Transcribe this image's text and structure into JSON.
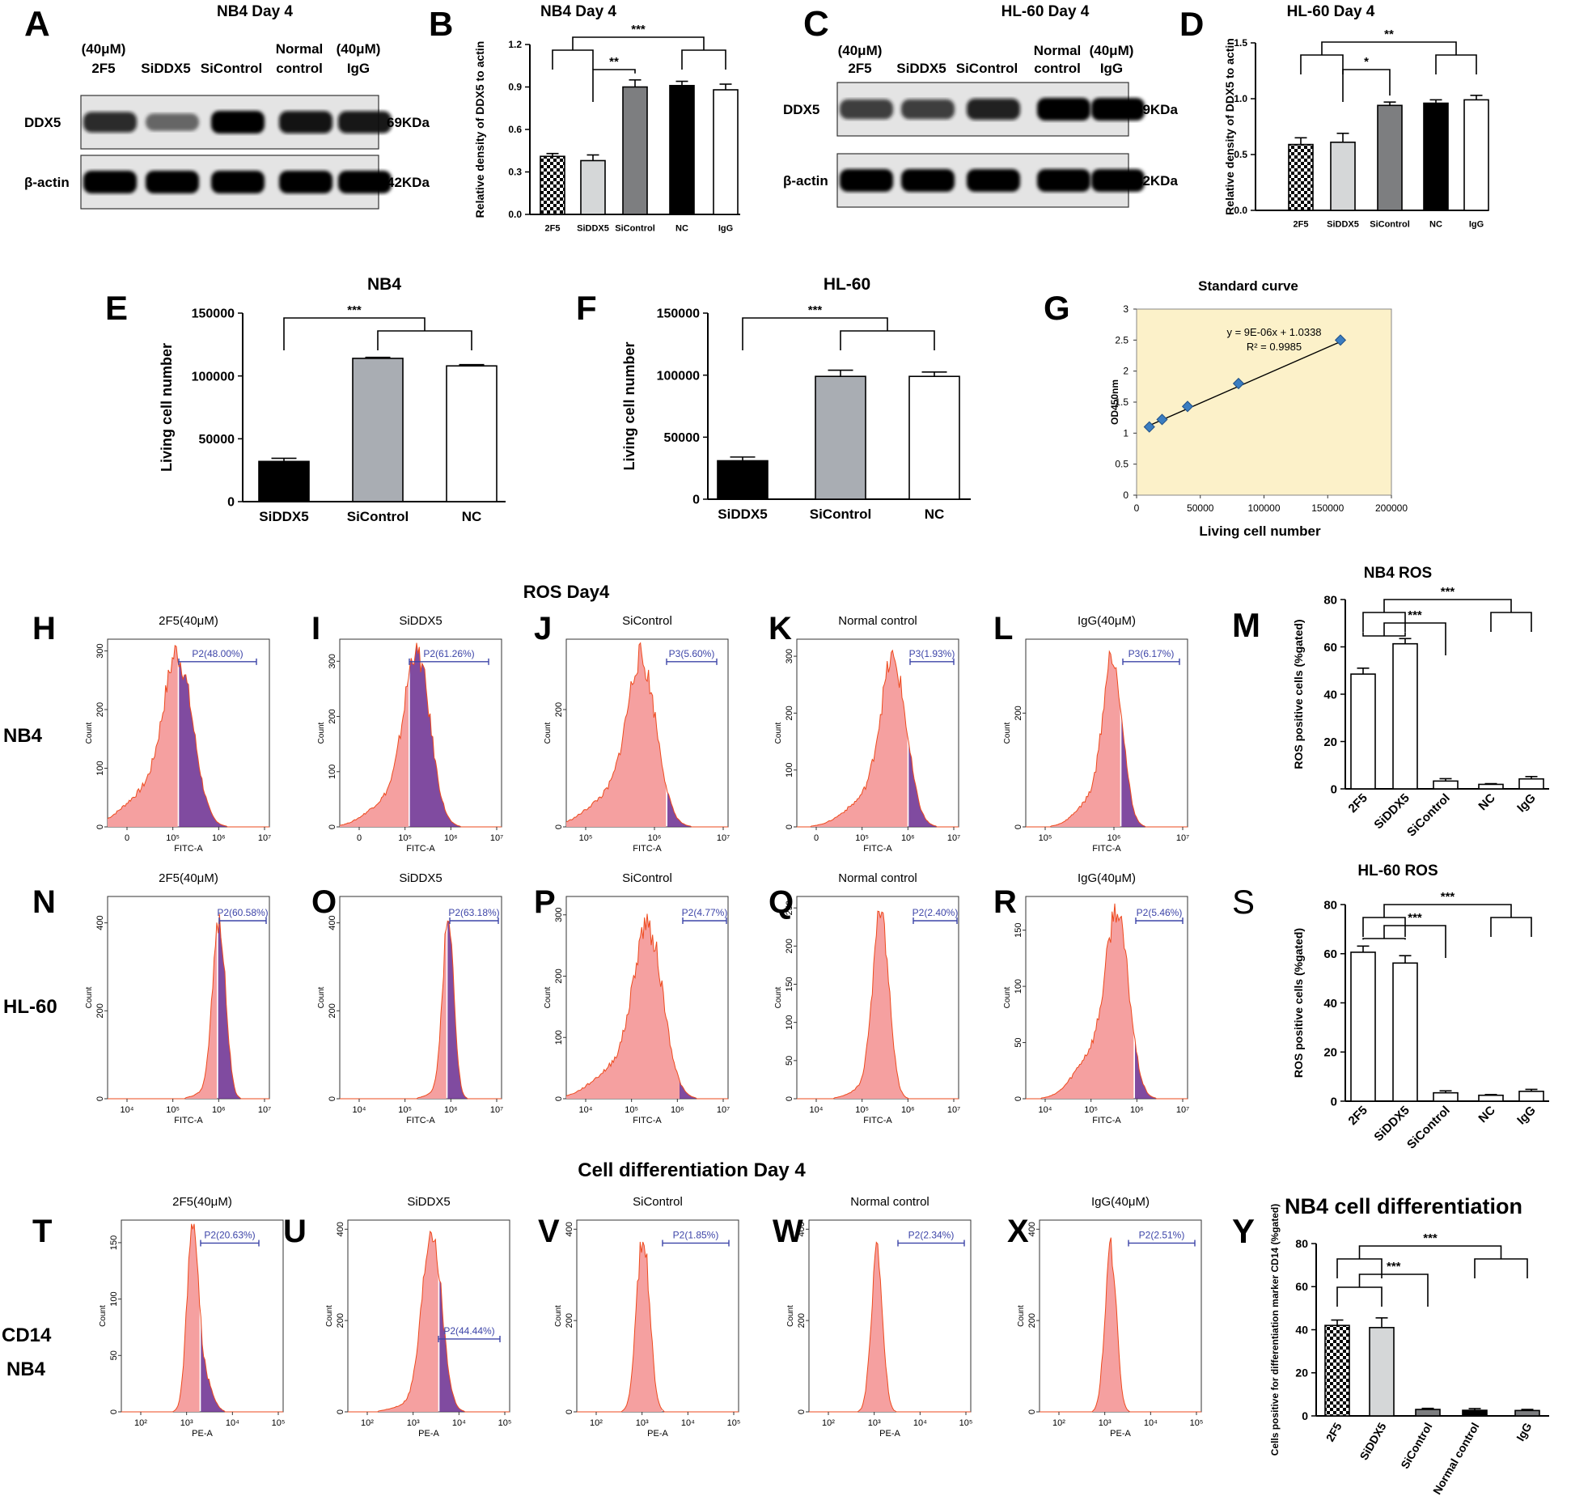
{
  "figure_title_ros": "ROS  Day4",
  "figure_title_diff": "Cell differentiation Day 4",
  "row_label_nb4": "NB4",
  "row_label_hl60": "HL-60",
  "row_label_cd14": "CD14",
  "row_label_cd14_nb4": "NB4",
  "colors": {
    "bar_black": "#000000",
    "bar_light": "#d5d7d8",
    "bar_gray": "#7d7e80",
    "bar_sicontrol_e": "#a9adb3",
    "hist_fill": "#f5a0a0",
    "hist_edge": "#ee4a1e",
    "hist_gated": "#6a2c8f",
    "gate": "#3d45a8",
    "std_bg": "#fcf1c9"
  },
  "blots": {
    "A": {
      "letter": "A",
      "title": "NB4 Day 4",
      "lane_top": [
        "(40μM)",
        "",
        "",
        "Normal",
        "(40μM)"
      ],
      "lanes": [
        "2F5",
        "SiDDX5",
        "SiControl",
        "control",
        "IgG"
      ],
      "rows": [
        {
          "label": "DDX5",
          "size": "69KDa",
          "intensity": [
            0.78,
            0.45,
            1.0,
            0.95,
            0.93
          ]
        },
        {
          "label": "β-actin",
          "size": "42KDa",
          "intensity": [
            1.0,
            1.0,
            1.0,
            1.0,
            1.0
          ]
        }
      ]
    },
    "C": {
      "letter": "C",
      "title": "HL-60 Day 4",
      "lane_top": [
        "(40μM)",
        "",
        "",
        "Normal",
        "(40μM)"
      ],
      "lanes": [
        "2F5",
        "SiDDX5",
        "SiControl",
        "control",
        "IgG"
      ],
      "rows": [
        {
          "label": "DDX5",
          "size": "69KDa",
          "intensity": [
            0.7,
            0.7,
            0.85,
            1.0,
            1.0
          ]
        },
        {
          "label": "β-actin",
          "size": "42KDa",
          "intensity": [
            1.0,
            1.0,
            1.0,
            1.0,
            1.0
          ]
        }
      ]
    }
  },
  "chart_data": [
    {
      "id": "B",
      "letter": "B",
      "type": "bar",
      "title": "NB4 Day 4",
      "ylabel": "Relative density of DDX5 to actin",
      "categories": [
        "2F5",
        "SiDDX5",
        "SiControl",
        "NC",
        "IgG"
      ],
      "values": [
        0.41,
        0.38,
        0.9,
        0.91,
        0.88
      ],
      "errors": [
        0.02,
        0.04,
        0.05,
        0.03,
        0.04
      ],
      "ylim": [
        0,
        1.2
      ],
      "yticks": [
        "0.0",
        "0.3",
        "0.6",
        "0.9",
        "1.2"
      ],
      "fills": [
        "check",
        "light",
        "gray",
        "black",
        "white"
      ],
      "sig": [
        {
          "label": "***",
          "from": [
            0,
            1
          ],
          "to": [
            3,
            4
          ]
        },
        {
          "label": "**",
          "from": [
            1
          ],
          "to": [
            2
          ]
        }
      ]
    },
    {
      "id": "D",
      "letter": "D",
      "type": "bar",
      "title": "HL-60 Day 4",
      "ylabel": "Relative density of DDX5 to actin",
      "categories": [
        "2F5",
        "SiDDX5",
        "SiControl",
        "NC",
        "IgG"
      ],
      "values": [
        0.59,
        0.61,
        0.94,
        0.96,
        0.99
      ],
      "errors": [
        0.06,
        0.08,
        0.03,
        0.03,
        0.04
      ],
      "ylim": [
        0,
        1.5
      ],
      "yticks": [
        "0.0",
        "0.5",
        "1.0",
        "1.5"
      ],
      "fills": [
        "check",
        "light",
        "gray",
        "black",
        "white"
      ],
      "sig": [
        {
          "label": "**",
          "from": [
            0,
            1
          ],
          "to": [
            3,
            4
          ]
        },
        {
          "label": "*",
          "from": [
            1
          ],
          "to": [
            2
          ]
        }
      ]
    },
    {
      "id": "E",
      "letter": "E",
      "type": "bar",
      "title": "NB4",
      "ylabel": "Living cell number",
      "categories": [
        "SiDDX5",
        "SiControl",
        "NC"
      ],
      "values": [
        32000,
        114000,
        108000
      ],
      "errors": [
        2500,
        800,
        1000
      ],
      "ylim": [
        0,
        150000
      ],
      "yticks": [
        "0",
        "50000",
        "100000",
        "150000"
      ],
      "fills": [
        "black",
        "silver",
        "white"
      ],
      "sig": [
        {
          "label": "***",
          "from": [
            0
          ],
          "to": [
            1,
            2
          ]
        }
      ]
    },
    {
      "id": "F",
      "letter": "F",
      "type": "bar",
      "title": "HL-60",
      "ylabel": "Living cell number",
      "categories": [
        "SiDDX5",
        "SiControl",
        "NC"
      ],
      "values": [
        31000,
        99000,
        99000
      ],
      "errors": [
        3000,
        5000,
        3500
      ],
      "ylim": [
        0,
        150000
      ],
      "yticks": [
        "0",
        "50000",
        "100000",
        "150000"
      ],
      "fills": [
        "black",
        "silver",
        "white"
      ],
      "sig": [
        {
          "label": "***",
          "from": [
            0
          ],
          "to": [
            1,
            2
          ]
        }
      ]
    },
    {
      "id": "G",
      "letter": "G",
      "type": "scatter",
      "title": "Standard curve",
      "xlabel": "Living cell number",
      "ylabel": "OD450nm",
      "x": [
        10000,
        20000,
        40000,
        80000,
        160000
      ],
      "y": [
        1.1,
        1.22,
        1.43,
        1.8,
        2.5
      ],
      "xlim": [
        0,
        200000
      ],
      "ylim": [
        0,
        3
      ],
      "xticks": [
        "0",
        "50000",
        "100000",
        "150000",
        "200000"
      ],
      "yticks": [
        "0",
        "0.5",
        "1",
        "1.5",
        "2",
        "2.5",
        "3"
      ],
      "equation": "y = 9E-06x + 1.0338",
      "r2": "R² = 0.9985"
    },
    {
      "id": "M",
      "letter": "M",
      "type": "bar",
      "title": "NB4 ROS",
      "ylabel": "ROS positive cells (%gated)",
      "categories": [
        "2F5",
        "SiDDX5",
        "SiControl",
        "NC",
        "IgG"
      ],
      "values": [
        48.5,
        61.3,
        3.3,
        1.9,
        4.2
      ],
      "errors": [
        2.5,
        2.2,
        1.0,
        0.3,
        1.0
      ],
      "ylim": [
        0,
        80
      ],
      "yticks": [
        "0",
        "20",
        "40",
        "60",
        "80"
      ],
      "fills": [
        "white",
        "white",
        "white",
        "white",
        "white"
      ],
      "sig": [
        {
          "label": "***",
          "from": [
            0,
            1
          ],
          "to": [
            3,
            4
          ]
        },
        {
          "label": "***",
          "from": [
            0,
            1
          ],
          "to": [
            2
          ]
        }
      ]
    },
    {
      "id": "S",
      "letter": "S",
      "type": "bar",
      "title": "HL-60 ROS",
      "ylabel": "ROS positive cells (%gated)",
      "categories": [
        "2F5",
        "SiDDX5",
        "SiControl",
        "NC",
        "IgG"
      ],
      "values": [
        60.6,
        56.2,
        3.4,
        2.4,
        4.0
      ],
      "errors": [
        2.5,
        3.0,
        0.8,
        0.3,
        0.8
      ],
      "ylim": [
        0,
        80
      ],
      "yticks": [
        "0",
        "20",
        "40",
        "60",
        "80"
      ],
      "fills": [
        "white",
        "white",
        "white",
        "white",
        "white"
      ],
      "sig": [
        {
          "label": "***",
          "from": [
            0,
            1
          ],
          "to": [
            3,
            4
          ]
        },
        {
          "label": "***",
          "from": [
            0,
            1
          ],
          "to": [
            2
          ]
        }
      ]
    },
    {
      "id": "Y",
      "letter": "Y",
      "type": "bar",
      "title": "NB4 cell differentiation",
      "ylabel": "Cells positive for differentiation marker CD14 (%gated)",
      "categories": [
        "2F5",
        "SiDDX5",
        "SiControl",
        "Normal control",
        "IgG"
      ],
      "values": [
        42,
        41,
        3,
        2.6,
        2.5
      ],
      "errors": [
        2.5,
        4.5,
        0.5,
        0.8,
        0.5
      ],
      "ylim": [
        0,
        80
      ],
      "yticks": [
        "0",
        "20",
        "40",
        "60",
        "80"
      ],
      "fills": [
        "check",
        "light",
        "gray",
        "black",
        "gray"
      ],
      "sig": [
        {
          "label": "***",
          "from": [
            0,
            1
          ],
          "to": [
            3,
            4
          ]
        },
        {
          "label": "***",
          "from": [
            0,
            1
          ],
          "to": [
            2
          ]
        }
      ]
    }
  ],
  "histograms": [
    {
      "id": "H",
      "letter": "H",
      "title": "2F5(40μM)",
      "xlabel": "FITC-A",
      "ylabel": "Count",
      "gate": "P2(48.00%)",
      "yticks": [
        "0",
        "100",
        "200",
        "300"
      ],
      "ymax": 320,
      "xticks": [
        "0",
        "10⁵",
        "10⁶",
        "10⁷"
      ],
      "peak": 0.44,
      "width": 0.09,
      "peakh": 0.87,
      "split": 0.44,
      "gate_from": 0.44,
      "gate_to": 0.92,
      "left_tail": 0.18
    },
    {
      "id": "I",
      "letter": "I",
      "title": "SiDDX5",
      "xlabel": "FITC-A",
      "ylabel": "Count",
      "gate": "P2(61.26%)",
      "yticks": [
        "0",
        "100",
        "200",
        "300"
      ],
      "ymax": 340,
      "xticks": [
        "0",
        "10⁵",
        "10⁶",
        "10⁷"
      ],
      "peak": 0.48,
      "width": 0.08,
      "peakh": 0.9,
      "split": 0.43,
      "gate_from": 0.43,
      "gate_to": 0.92,
      "left_tail": 0.14
    },
    {
      "id": "J",
      "letter": "J",
      "title": "SiControl",
      "xlabel": "FITC-A",
      "ylabel": "Count",
      "gate": "P3(5.60%)",
      "yticks": [
        "0",
        "200"
      ],
      "ymax": 320,
      "xticks": [
        "10⁵",
        "10⁶",
        "10⁷"
      ],
      "peak": 0.47,
      "width": 0.09,
      "peakh": 0.85,
      "split": 0.62,
      "gate_from": 0.62,
      "gate_to": 0.93,
      "left_tail": 0.16
    },
    {
      "id": "K",
      "letter": "K",
      "title": "Normal control",
      "xlabel": "FITC-A",
      "ylabel": "Count",
      "gate": "P3(1.93%)",
      "yticks": [
        "0",
        "100",
        "200",
        "300"
      ],
      "ymax": 330,
      "xticks": [
        "0",
        "10⁵",
        "10⁶",
        "10⁷"
      ],
      "peak": 0.6,
      "width": 0.08,
      "peakh": 0.85,
      "split": 0.69,
      "gate_from": 0.7,
      "gate_to": 0.97,
      "left_tail": 0.14
    },
    {
      "id": "L",
      "letter": "L",
      "title": "IgG(40μM)",
      "xlabel": "FITC-A",
      "ylabel": "Count",
      "gate": "P3(6.17%)",
      "yticks": [
        "0",
        "200"
      ],
      "ymax": 330,
      "xticks": [
        "10⁵",
        "10⁶",
        "10⁷"
      ],
      "peak": 0.54,
      "width": 0.06,
      "peakh": 0.88,
      "split": 0.59,
      "gate_from": 0.6,
      "gate_to": 0.95,
      "left_tail": 0.14
    },
    {
      "id": "N",
      "letter": "N",
      "title": "2F5(40μM)",
      "xlabel": "FITC-A",
      "ylabel": "Count",
      "gate": "P2(60.58%)",
      "yticks": [
        "0",
        "200",
        "400"
      ],
      "ymax": 460,
      "xticks": [
        "10⁴",
        "10⁵",
        "10⁶",
        "10⁷"
      ],
      "peak": 0.69,
      "width": 0.04,
      "peakh": 0.88,
      "split": 0.68,
      "gate_from": 0.69,
      "gate_to": 0.98,
      "left_tail": 0.03
    },
    {
      "id": "O",
      "letter": "O",
      "title": "SiDDX5",
      "xlabel": "FITC-A",
      "ylabel": "Count",
      "gate": "P2(63.18%)",
      "yticks": [
        "0",
        "200",
        "400"
      ],
      "ymax": 460,
      "xticks": [
        "10⁴",
        "10⁵",
        "10⁶",
        "10⁷"
      ],
      "peak": 0.67,
      "width": 0.035,
      "peakh": 0.88,
      "split": 0.66,
      "gate_from": 0.68,
      "gate_to": 0.98,
      "left_tail": 0.03
    },
    {
      "id": "P",
      "letter": "P",
      "title": "SiControl",
      "xlabel": "FITC-A",
      "ylabel": "Count",
      "gate": "P2(4.77%)",
      "yticks": [
        "0",
        "100",
        "200",
        "300"
      ],
      "ymax": 330,
      "xticks": [
        "10⁴",
        "10⁵",
        "10⁶",
        "10⁷"
      ],
      "peak": 0.51,
      "width": 0.09,
      "peakh": 0.82,
      "split": 0.7,
      "gate_from": 0.72,
      "gate_to": 0.99,
      "left_tail": 0.15
    },
    {
      "id": "Q",
      "letter": "Q",
      "title": "Normal control",
      "xlabel": "FITC-A",
      "ylabel": "Count",
      "gate": "P2(2.40%)",
      "yticks": [
        "0",
        "50",
        "100",
        "150",
        "200",
        "250"
      ],
      "ymax": 265,
      "xticks": [
        "10⁴",
        "10⁵",
        "10⁶",
        "10⁷"
      ],
      "peak": 0.52,
      "width": 0.05,
      "peakh": 0.92,
      "split": 0.7,
      "gate_from": 0.72,
      "gate_to": 0.99,
      "left_tail": 0.05
    },
    {
      "id": "R",
      "letter": "R",
      "title": "IgG(40μM)",
      "xlabel": "FITC-A",
      "ylabel": "Count",
      "gate": "P2(5.46%)",
      "yticks": [
        "0",
        "50",
        "100",
        "150"
      ],
      "ymax": 180,
      "xticks": [
        "10⁴",
        "10⁵",
        "10⁶",
        "10⁷"
      ],
      "peak": 0.57,
      "width": 0.07,
      "peakh": 0.86,
      "split": 0.67,
      "gate_from": 0.68,
      "gate_to": 0.97,
      "left_tail": 0.22
    },
    {
      "id": "T",
      "letter": "T",
      "title": "2F5(40μM)",
      "xlabel": "PE-A",
      "ylabel": "Count",
      "gate": "P2(20.63%)",
      "yticks": [
        "0",
        "50",
        "100",
        "150"
      ],
      "ymax": 170,
      "xticks": [
        "10²",
        "10³",
        "10⁴",
        "10⁵"
      ],
      "peak": 0.44,
      "width": 0.035,
      "peakh": 0.95,
      "split": 0.49,
      "gate_from": 0.49,
      "gate_to": 0.85,
      "left_tail": 0.0,
      "right_tail": 0.17
    },
    {
      "id": "U",
      "letter": "U",
      "title": "SiDDX5",
      "xlabel": "PE-A",
      "ylabel": "Count",
      "gate": "P2(44.44%)",
      "yticks": [
        "0",
        "200",
        "400"
      ],
      "ymax": 420,
      "xticks": [
        "10²",
        "10³",
        "10⁴",
        "10⁵"
      ],
      "peak": 0.52,
      "width": 0.06,
      "peakh": 0.96,
      "split": 0.56,
      "gate_from": 0.56,
      "gate_to": 0.94,
      "left_tail": 0.04,
      "gate_low": true
    },
    {
      "id": "V",
      "letter": "V",
      "title": "SiControl",
      "xlabel": "PE-A",
      "ylabel": "Count",
      "gate": "P2(1.85%)",
      "yticks": [
        "0",
        "200",
        "400"
      ],
      "ymax": 420,
      "xticks": [
        "10²",
        "10³",
        "10⁴",
        "10⁵"
      ],
      "peak": 0.41,
      "width": 0.04,
      "peakh": 0.93,
      "split": 0.53,
      "gate_from": 0.53,
      "gate_to": 0.94,
      "left_tail": 0.0
    },
    {
      "id": "W",
      "letter": "W",
      "title": "Normal control",
      "xlabel": "PE-A",
      "ylabel": "Count",
      "gate": "P2(2.34%)",
      "yticks": [
        "0",
        "200",
        "400"
      ],
      "ymax": 420,
      "xticks": [
        "10²",
        "10³",
        "10⁴",
        "10⁵"
      ],
      "peak": 0.42,
      "width": 0.035,
      "peakh": 0.84,
      "split": 0.55,
      "gate_from": 0.55,
      "gate_to": 0.96,
      "left_tail": 0.0
    },
    {
      "id": "X",
      "letter": "X",
      "title": "IgG(40μM)",
      "xlabel": "PE-A",
      "ylabel": "Count",
      "gate": "P2(2.51%)",
      "yticks": [
        "0",
        "200",
        "400"
      ],
      "ymax": 420,
      "xticks": [
        "10²",
        "10³",
        "10⁴",
        "10⁵"
      ],
      "peak": 0.44,
      "width": 0.035,
      "peakh": 0.86,
      "split": 0.55,
      "gate_from": 0.55,
      "gate_to": 0.96,
      "left_tail": 0.0
    }
  ]
}
